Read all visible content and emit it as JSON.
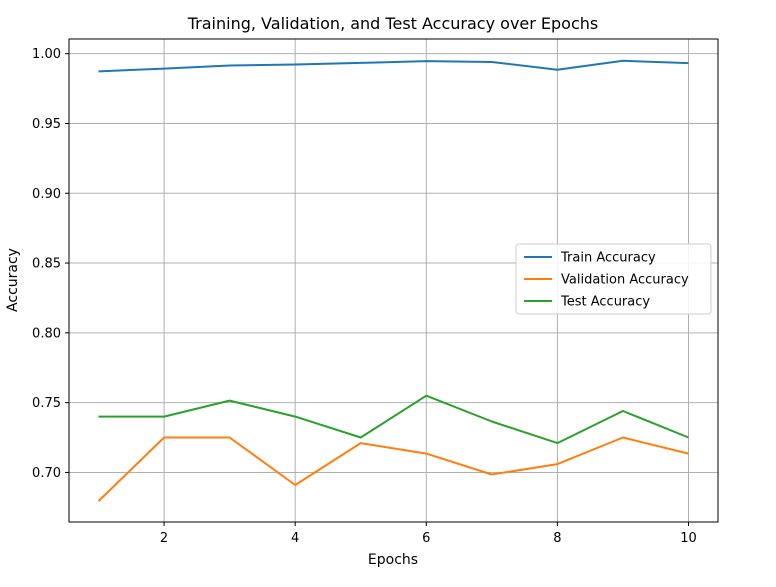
{
  "chart_data": {
    "type": "line",
    "title": "Training, Validation, and Test Accuracy over Epochs",
    "xlabel": "Epochs",
    "ylabel": "Accuracy",
    "x": [
      1,
      2,
      3,
      4,
      5,
      6,
      7,
      8,
      9,
      10
    ],
    "xlim": [
      0.55,
      10.45
    ],
    "ylim": [
      0.6645,
      1.0105
    ],
    "xticks": [
      2,
      4,
      6,
      8,
      10
    ],
    "xtick_labels": [
      "2",
      "4",
      "6",
      "8",
      "10"
    ],
    "yticks": [
      0.7,
      0.75,
      0.8,
      0.85,
      0.9,
      0.95,
      1.0
    ],
    "ytick_labels": [
      "0.70",
      "0.75",
      "0.80",
      "0.85",
      "0.90",
      "0.95",
      "1.00"
    ],
    "grid": true,
    "legend_position": "center-right",
    "series": [
      {
        "name": "Train Accuracy",
        "color": "#1f77b4",
        "values": [
          0.9873,
          0.9893,
          0.9915,
          0.9922,
          0.9934,
          0.9947,
          0.994,
          0.9885,
          0.9949,
          0.9932
        ]
      },
      {
        "name": "Validation Accuracy",
        "color": "#ff7f0e",
        "values": [
          0.6795,
          0.725,
          0.725,
          0.691,
          0.721,
          0.7135,
          0.6985,
          0.706,
          0.725,
          0.7135
        ]
      },
      {
        "name": "Test Accuracy",
        "color": "#2ca02c",
        "values": [
          0.74,
          0.74,
          0.7515,
          0.74,
          0.725,
          0.755,
          0.7365,
          0.721,
          0.744,
          0.725
        ]
      }
    ]
  }
}
